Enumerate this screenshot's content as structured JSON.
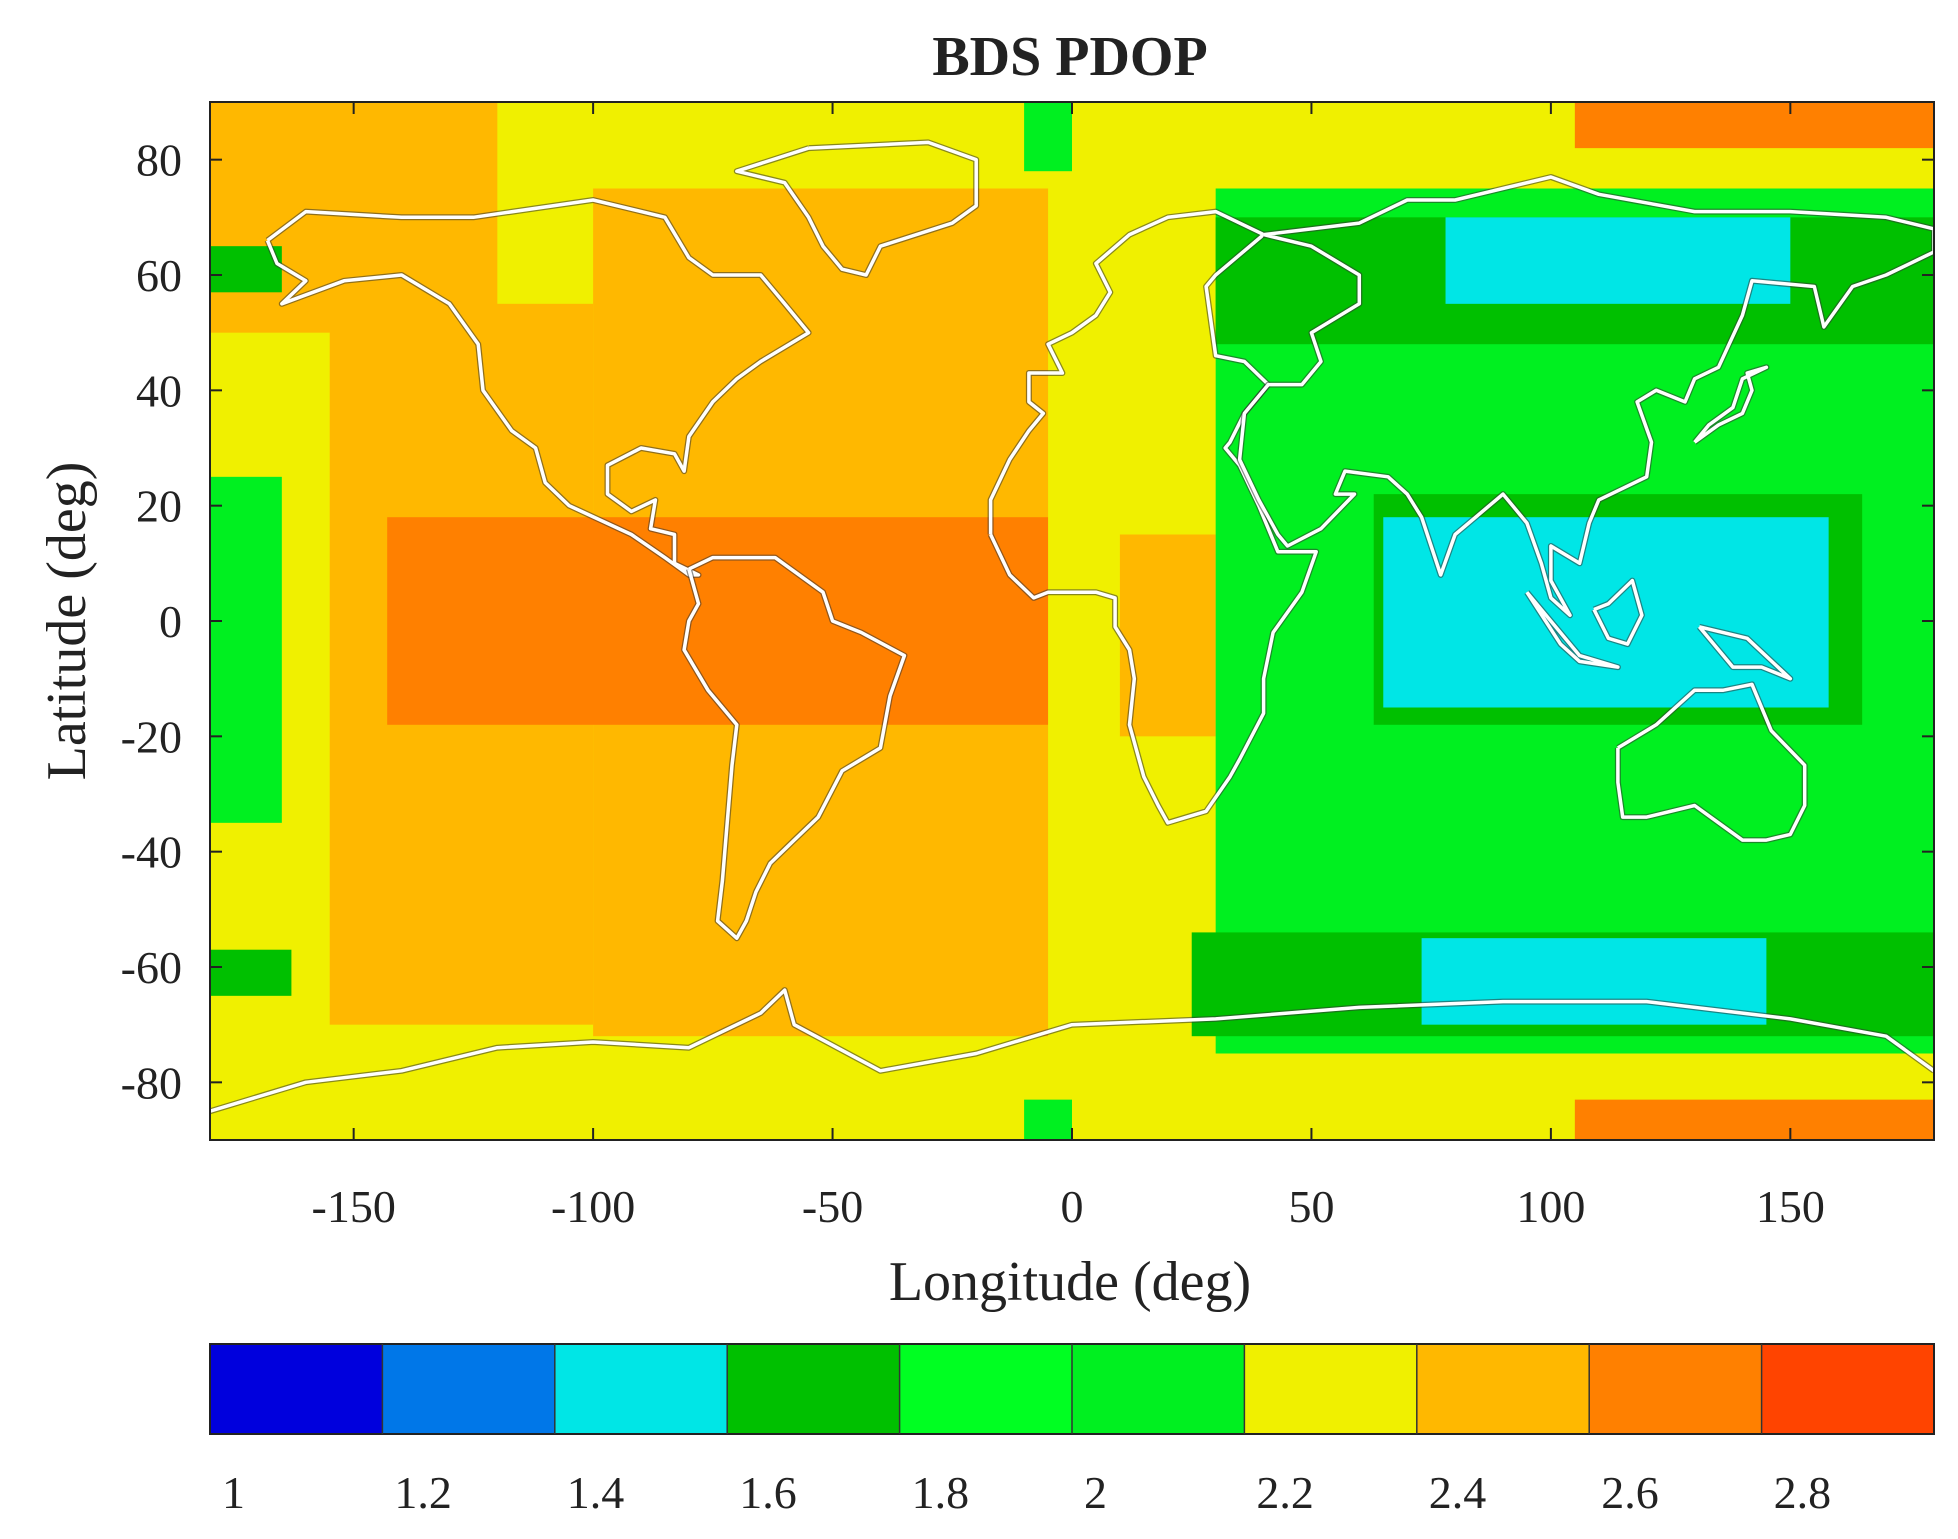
{
  "chart_data": {
    "type": "heatmap",
    "title": "BDS PDOP",
    "xlabel": "Longitude (deg)",
    "ylabel": "Latitude (deg)",
    "xlim": [
      -180,
      180
    ],
    "ylim": [
      -90,
      90
    ],
    "x_ticks": [
      "-150",
      "-100",
      "-50",
      "0",
      "50",
      "100",
      "150"
    ],
    "x_tick_values": [
      -150,
      -100,
      -50,
      0,
      50,
      100,
      150
    ],
    "y_ticks": [
      "80",
      "60",
      "40",
      "20",
      "0",
      "-20",
      "-40",
      "-60",
      "-80"
    ],
    "y_tick_values": [
      80,
      60,
      40,
      20,
      0,
      -20,
      -40,
      -60,
      -80
    ],
    "colorbar": {
      "tick_labels": [
        "1",
        "1.2",
        "1.4",
        "1.6",
        "1.8",
        "2",
        "2.2",
        "2.4",
        "2.6",
        "2.8"
      ],
      "levels": [
        1,
        1.2,
        1.4,
        1.6,
        1.8,
        2,
        2.2,
        2.4,
        2.6,
        2.8,
        3
      ],
      "colors": [
        "#0000dd",
        "#0077e8",
        "#00e6e6",
        "#00c000",
        "#00ff22",
        "#00f020",
        "#f0f000",
        "#ffb800",
        "#ff8000",
        "#ff4400"
      ]
    },
    "regions": [
      {
        "value": 2.3,
        "lon": [
          -180,
          180
        ],
        "lat": [
          -90,
          90
        ]
      },
      {
        "value": 2.5,
        "lon": [
          -180,
          -120
        ],
        "lat": [
          50,
          90
        ]
      },
      {
        "value": 2.5,
        "lon": [
          -100,
          -5
        ],
        "lat": [
          -72,
          75
        ]
      },
      {
        "value": 2.5,
        "lon": [
          -155,
          -100
        ],
        "lat": [
          -70,
          55
        ]
      },
      {
        "value": 2.7,
        "lon": [
          -143,
          -5
        ],
        "lat": [
          -18,
          18
        ]
      },
      {
        "value": 2.5,
        "lon": [
          10,
          30
        ],
        "lat": [
          -20,
          15
        ]
      },
      {
        "value": 2.1,
        "lon": [
          30,
          180
        ],
        "lat": [
          -75,
          75
        ]
      },
      {
        "value": 1.7,
        "lon": [
          30,
          180
        ],
        "lat": [
          48,
          70
        ]
      },
      {
        "value": 1.5,
        "lon": [
          78,
          150
        ],
        "lat": [
          55,
          70
        ]
      },
      {
        "value": 1.7,
        "lon": [
          63,
          165
        ],
        "lat": [
          -18,
          22
        ]
      },
      {
        "value": 1.5,
        "lon": [
          65,
          158
        ],
        "lat": [
          -15,
          18
        ]
      },
      {
        "value": 1.7,
        "lon": [
          25,
          180
        ],
        "lat": [
          -72,
          -54
        ]
      },
      {
        "value": 1.5,
        "lon": [
          73,
          145
        ],
        "lat": [
          -70,
          -55
        ]
      },
      {
        "value": 2.1,
        "lon": [
          -180,
          -165
        ],
        "lat": [
          -35,
          25
        ]
      },
      {
        "value": 1.7,
        "lon": [
          -180,
          -163
        ],
        "lat": [
          -65,
          -57
        ]
      },
      {
        "value": 1.7,
        "lon": [
          -180,
          -165
        ],
        "lat": [
          57,
          65
        ]
      },
      {
        "value": 2.1,
        "lon": [
          -10,
          0
        ],
        "lat": [
          78,
          90
        ]
      },
      {
        "value": 2.1,
        "lon": [
          -10,
          0
        ],
        "lat": [
          -90,
          -83
        ]
      },
      {
        "value": 2.7,
        "lon": [
          105,
          180
        ],
        "lat": [
          82,
          90
        ]
      },
      {
        "value": 2.7,
        "lon": [
          105,
          180
        ],
        "lat": [
          -90,
          -83
        ]
      }
    ]
  }
}
